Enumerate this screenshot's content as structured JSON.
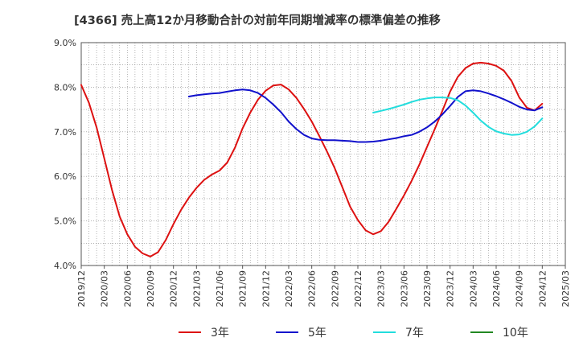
{
  "chart_data": {
    "type": "line",
    "title": "[4366]  売上高12か月移動合計の対前年同期増減率の標準偏差の推移",
    "xlabel": "",
    "ylabel": "",
    "ylim": [
      4.0,
      9.0
    ],
    "yticks": [
      "4.0%",
      "5.0%",
      "6.0%",
      "7.0%",
      "8.0%",
      "9.0%"
    ],
    "xticks": [
      "2019/12",
      "2020/03",
      "2020/06",
      "2020/09",
      "2020/12",
      "2021/03",
      "2021/06",
      "2021/09",
      "2021/12",
      "2022/03",
      "2022/06",
      "2022/09",
      "2022/12",
      "2023/03",
      "2023/06",
      "2023/09",
      "2023/12",
      "2024/03",
      "2024/06",
      "2024/09",
      "2024/12",
      "2025/03"
    ],
    "grid": true,
    "legend_position": "bottom",
    "series": [
      {
        "name": "3年",
        "color": "#dd1111",
        "points": [
          [
            "2019/12",
            8.05
          ],
          [
            "2020/01",
            7.65
          ],
          [
            "2020/02",
            7.1
          ],
          [
            "2020/03",
            6.4
          ],
          [
            "2020/04",
            5.7
          ],
          [
            "2020/05",
            5.1
          ],
          [
            "2020/06",
            4.7
          ],
          [
            "2020/07",
            4.42
          ],
          [
            "2020/08",
            4.27
          ],
          [
            "2020/09",
            4.2
          ],
          [
            "2020/10",
            4.3
          ],
          [
            "2020/11",
            4.57
          ],
          [
            "2020/12",
            4.93
          ],
          [
            "2021/01",
            5.25
          ],
          [
            "2021/02",
            5.52
          ],
          [
            "2021/03",
            5.74
          ],
          [
            "2021/04",
            5.92
          ],
          [
            "2021/05",
            6.04
          ],
          [
            "2021/06",
            6.13
          ],
          [
            "2021/07",
            6.31
          ],
          [
            "2021/08",
            6.64
          ],
          [
            "2021/09",
            7.08
          ],
          [
            "2021/10",
            7.43
          ],
          [
            "2021/11",
            7.72
          ],
          [
            "2021/12",
            7.92
          ],
          [
            "2022/01",
            8.04
          ],
          [
            "2022/02",
            8.06
          ],
          [
            "2022/03",
            7.95
          ],
          [
            "2022/04",
            7.76
          ],
          [
            "2022/05",
            7.51
          ],
          [
            "2022/06",
            7.23
          ],
          [
            "2022/07",
            6.9
          ],
          [
            "2022/08",
            6.55
          ],
          [
            "2022/09",
            6.18
          ],
          [
            "2022/10",
            5.75
          ],
          [
            "2022/11",
            5.32
          ],
          [
            "2022/12",
            5.02
          ],
          [
            "2023/01",
            4.79
          ],
          [
            "2023/02",
            4.7
          ],
          [
            "2023/03",
            4.77
          ],
          [
            "2023/04",
            4.98
          ],
          [
            "2023/05",
            5.27
          ],
          [
            "2023/06",
            5.57
          ],
          [
            "2023/07",
            5.9
          ],
          [
            "2023/08",
            6.26
          ],
          [
            "2023/09",
            6.66
          ],
          [
            "2023/10",
            7.06
          ],
          [
            "2023/11",
            7.47
          ],
          [
            "2023/12",
            7.9
          ],
          [
            "2024/01",
            8.23
          ],
          [
            "2024/02",
            8.43
          ],
          [
            "2024/03",
            8.53
          ],
          [
            "2024/04",
            8.55
          ],
          [
            "2024/05",
            8.53
          ],
          [
            "2024/06",
            8.48
          ],
          [
            "2024/07",
            8.37
          ],
          [
            "2024/08",
            8.14
          ],
          [
            "2024/09",
            7.77
          ],
          [
            "2024/10",
            7.54
          ],
          [
            "2024/11",
            7.48
          ],
          [
            "2024/12",
            7.63
          ]
        ]
      },
      {
        "name": "5年",
        "color": "#1111cc",
        "points": [
          [
            "2021/02",
            7.79
          ],
          [
            "2021/03",
            7.82
          ],
          [
            "2021/04",
            7.84
          ],
          [
            "2021/05",
            7.86
          ],
          [
            "2021/06",
            7.87
          ],
          [
            "2021/07",
            7.9
          ],
          [
            "2021/08",
            7.93
          ],
          [
            "2021/09",
            7.95
          ],
          [
            "2021/10",
            7.93
          ],
          [
            "2021/11",
            7.87
          ],
          [
            "2021/12",
            7.76
          ],
          [
            "2022/01",
            7.61
          ],
          [
            "2022/02",
            7.44
          ],
          [
            "2022/03",
            7.23
          ],
          [
            "2022/04",
            7.06
          ],
          [
            "2022/05",
            6.93
          ],
          [
            "2022/06",
            6.85
          ],
          [
            "2022/07",
            6.82
          ],
          [
            "2022/08",
            6.81
          ],
          [
            "2022/09",
            6.81
          ],
          [
            "2022/10",
            6.8
          ],
          [
            "2022/11",
            6.79
          ],
          [
            "2022/12",
            6.77
          ],
          [
            "2023/01",
            6.77
          ],
          [
            "2023/02",
            6.78
          ],
          [
            "2023/03",
            6.8
          ],
          [
            "2023/04",
            6.83
          ],
          [
            "2023/05",
            6.86
          ],
          [
            "2023/06",
            6.9
          ],
          [
            "2023/07",
            6.93
          ],
          [
            "2023/08",
            7.0
          ],
          [
            "2023/09",
            7.1
          ],
          [
            "2023/10",
            7.23
          ],
          [
            "2023/11",
            7.39
          ],
          [
            "2023/12",
            7.58
          ],
          [
            "2024/01",
            7.78
          ],
          [
            "2024/02",
            7.91
          ],
          [
            "2024/03",
            7.93
          ],
          [
            "2024/04",
            7.91
          ],
          [
            "2024/05",
            7.86
          ],
          [
            "2024/06",
            7.8
          ],
          [
            "2024/07",
            7.73
          ],
          [
            "2024/08",
            7.65
          ],
          [
            "2024/09",
            7.56
          ],
          [
            "2024/10",
            7.5
          ],
          [
            "2024/11",
            7.48
          ],
          [
            "2024/12",
            7.55
          ]
        ]
      },
      {
        "name": "7年",
        "color": "#22dddd",
        "points": [
          [
            "2023/02",
            7.43
          ],
          [
            "2023/03",
            7.47
          ],
          [
            "2023/04",
            7.51
          ],
          [
            "2023/05",
            7.56
          ],
          [
            "2023/06",
            7.61
          ],
          [
            "2023/07",
            7.67
          ],
          [
            "2023/08",
            7.72
          ],
          [
            "2023/09",
            7.75
          ],
          [
            "2023/10",
            7.77
          ],
          [
            "2023/11",
            7.77
          ],
          [
            "2023/12",
            7.76
          ],
          [
            "2024/01",
            7.71
          ],
          [
            "2024/02",
            7.59
          ],
          [
            "2024/03",
            7.43
          ],
          [
            "2024/04",
            7.25
          ],
          [
            "2024/05",
            7.11
          ],
          [
            "2024/06",
            7.01
          ],
          [
            "2024/07",
            6.96
          ],
          [
            "2024/08",
            6.93
          ],
          [
            "2024/09",
            6.94
          ],
          [
            "2024/10",
            7.0
          ],
          [
            "2024/11",
            7.12
          ],
          [
            "2024/12",
            7.3
          ]
        ]
      },
      {
        "name": "10年",
        "color": "#228822",
        "points": []
      }
    ]
  }
}
